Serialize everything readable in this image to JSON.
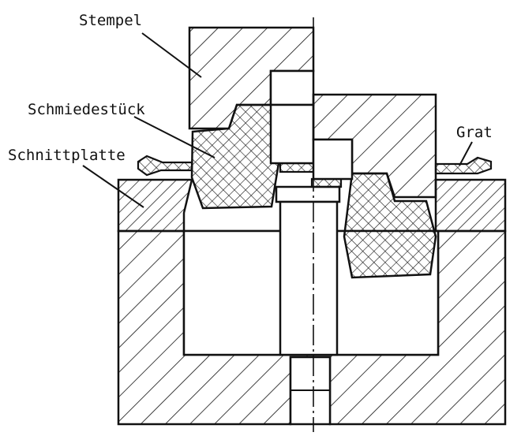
{
  "labels": {
    "punch": "Stempel",
    "forging": "Schmiedestück",
    "trim_plate": "Schnittplatte",
    "flash": "Grat"
  },
  "colors": {
    "ink": "#111111",
    "background": "#ffffff"
  }
}
